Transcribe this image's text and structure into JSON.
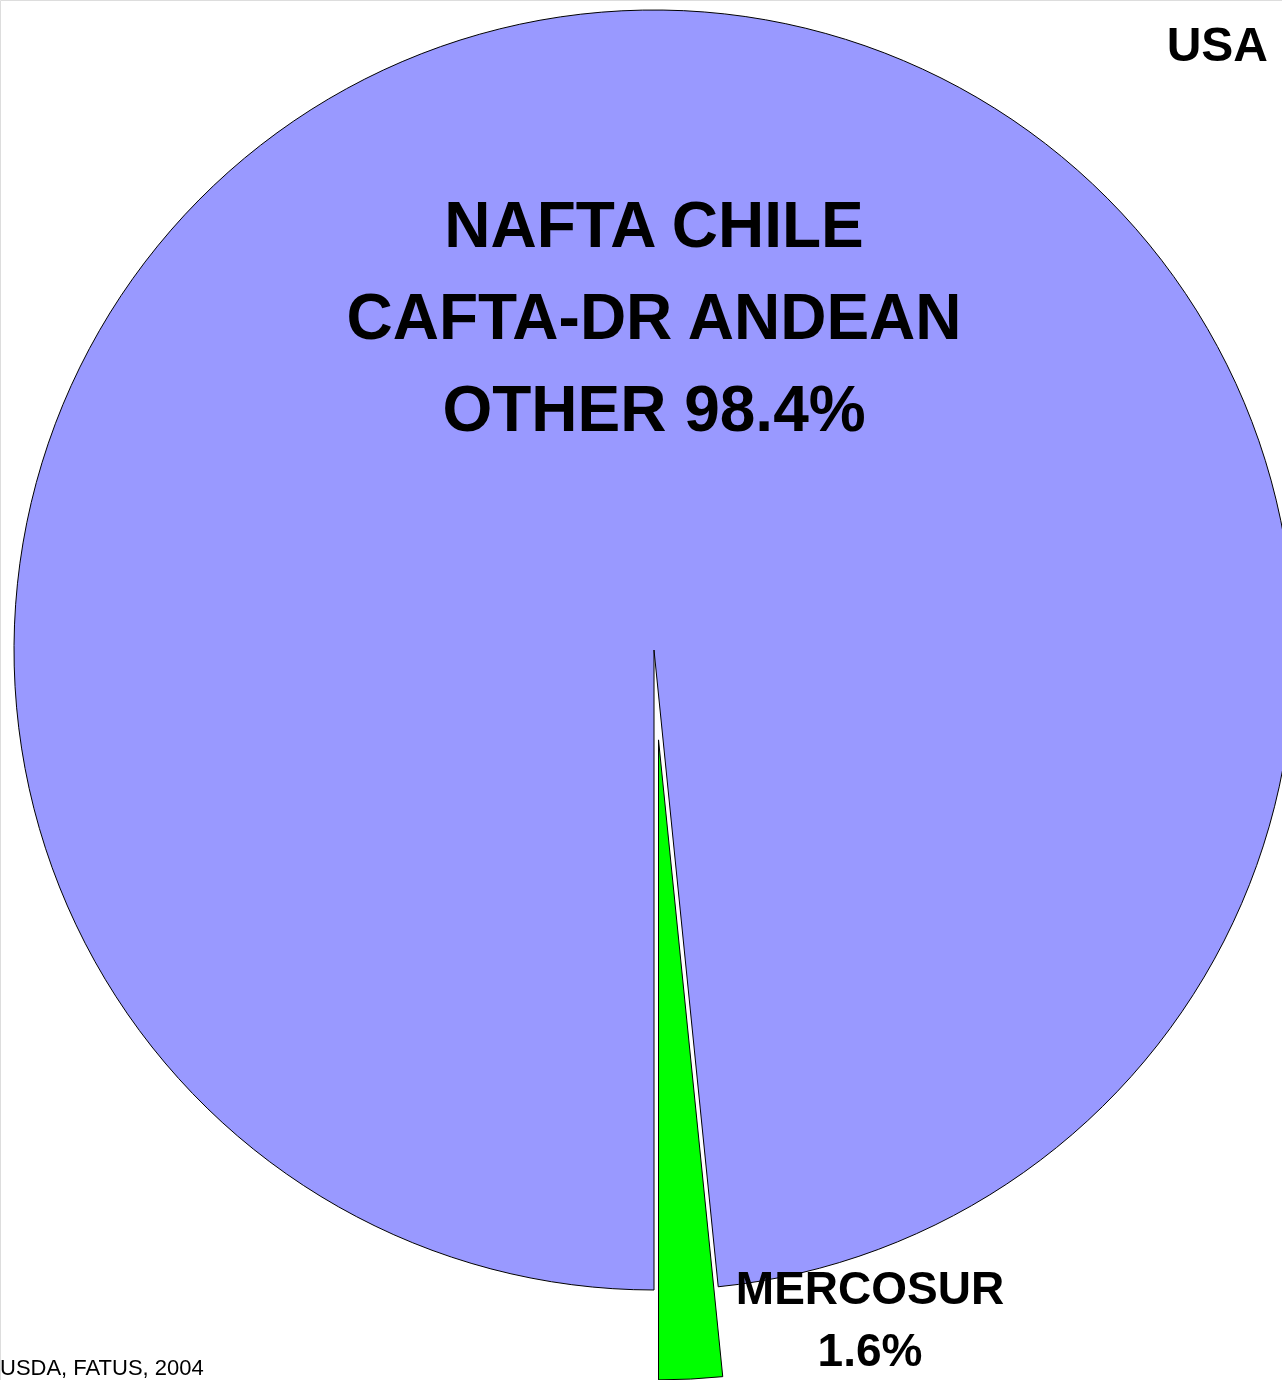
{
  "chart_data": {
    "type": "pie",
    "title": "USA",
    "categories": [
      "NAFTA CHILE CAFTA-DR ANDEAN OTHER",
      "MERCOSUR"
    ],
    "values": [
      98.4,
      1.6
    ],
    "colors": [
      "#9999ff",
      "#00ff00"
    ],
    "value_labels": [
      "98.4%",
      "1.6%"
    ],
    "annotations": [
      "USDA, FATUS, 2004"
    ]
  }
}
